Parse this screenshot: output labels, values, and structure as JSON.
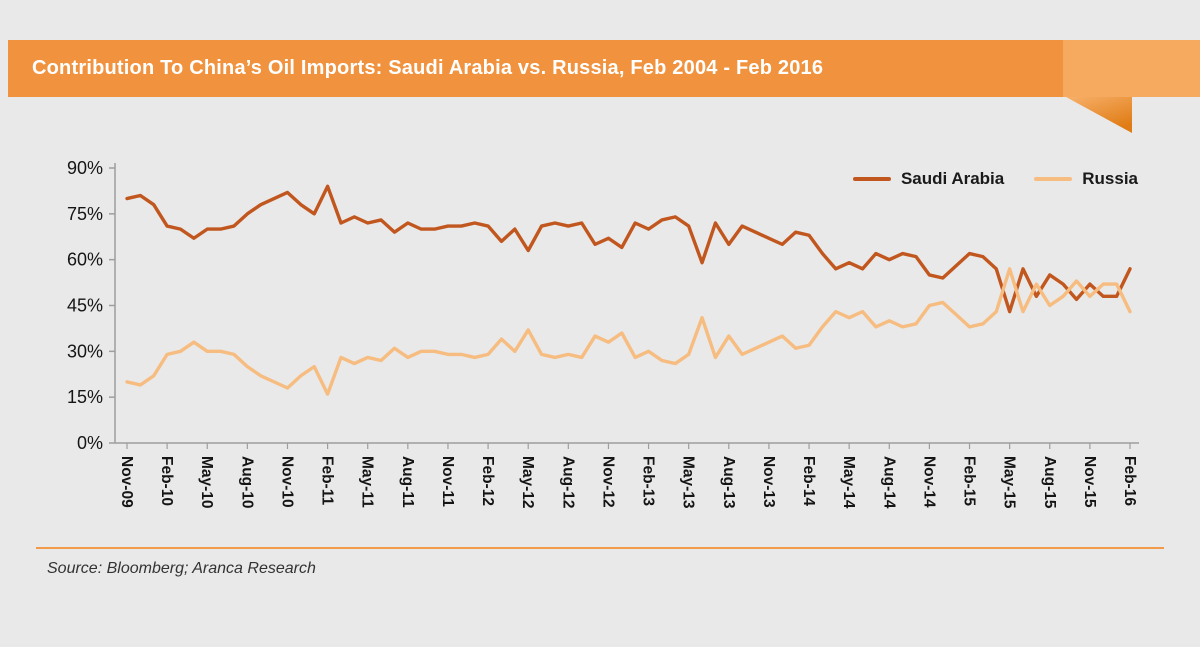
{
  "header": {
    "title": "Contribution To China’s Oil Imports: Saudi Arabia vs. Russia, Feb 2004 - Feb 2016",
    "banner_color": "#f0923e",
    "ribbon_color": "#f5aa60",
    "fold_color_light": "#f7b06a",
    "fold_color_dark": "#e07c15"
  },
  "legend": {
    "items": [
      {
        "label": "Saudi Arabia",
        "color": "#c1571e"
      },
      {
        "label": "Russia",
        "color": "#f6bc80"
      }
    ]
  },
  "footer": {
    "source": "Source: Bloomberg; Aranca Research",
    "divider_color": "#f09a4a"
  },
  "chart_data": {
    "type": "line",
    "title": "Contribution To China’s Oil Imports: Saudi Arabia vs. Russia, Feb 2004 - Feb 2016",
    "xlabel": "",
    "ylabel": "",
    "ylim": [
      0,
      90
    ],
    "yticks_percent": [
      0,
      15,
      30,
      45,
      60,
      75,
      90
    ],
    "ytick_labels": [
      "0%",
      "15%",
      "30%",
      "45%",
      "60%",
      "75%",
      "90%"
    ],
    "grid": false,
    "legend_position": "top-right",
    "axis_color": "#9e9e9e",
    "x_tick_step": 3,
    "x_tick_labels": [
      "Nov-09",
      "Feb-10",
      "May-10",
      "Aug-10",
      "Nov-10",
      "Feb-11",
      "May-11",
      "Aug-11",
      "Nov-11",
      "Feb-12",
      "May-12",
      "Aug-12",
      "Nov-12",
      "Feb-13",
      "May-13",
      "Aug-13",
      "Nov-13",
      "Feb-14",
      "May-14",
      "Aug-14",
      "Nov-14",
      "Feb-15",
      "May-15",
      "Aug-15",
      "Nov-15",
      "Feb-16"
    ],
    "x": [
      "Nov-09",
      "Dec-09",
      "Jan-10",
      "Feb-10",
      "Mar-10",
      "Apr-10",
      "May-10",
      "Jun-10",
      "Jul-10",
      "Aug-10",
      "Sep-10",
      "Oct-10",
      "Nov-10",
      "Dec-10",
      "Jan-11",
      "Feb-11",
      "Mar-11",
      "Apr-11",
      "May-11",
      "Jun-11",
      "Jul-11",
      "Aug-11",
      "Sep-11",
      "Oct-11",
      "Nov-11",
      "Dec-11",
      "Jan-12",
      "Feb-12",
      "Mar-12",
      "Apr-12",
      "May-12",
      "Jun-12",
      "Jul-12",
      "Aug-12",
      "Sep-12",
      "Oct-12",
      "Nov-12",
      "Dec-12",
      "Jan-13",
      "Feb-13",
      "Mar-13",
      "Apr-13",
      "May-13",
      "Jun-13",
      "Jul-13",
      "Aug-13",
      "Sep-13",
      "Oct-13",
      "Nov-13",
      "Dec-13",
      "Jan-14",
      "Feb-14",
      "Mar-14",
      "Apr-14",
      "May-14",
      "Jun-14",
      "Jul-14",
      "Aug-14",
      "Sep-14",
      "Oct-14",
      "Nov-14",
      "Dec-14",
      "Jan-15",
      "Feb-15",
      "Mar-15",
      "Apr-15",
      "May-15",
      "Jun-15",
      "Jul-15",
      "Aug-15",
      "Sep-15",
      "Oct-15",
      "Nov-15",
      "Dec-15",
      "Jan-16",
      "Feb-16"
    ],
    "series": [
      {
        "name": "Saudi Arabia",
        "color": "#c1571e",
        "values": [
          80,
          81,
          78,
          71,
          70,
          67,
          70,
          70,
          71,
          75,
          78,
          80,
          82,
          78,
          75,
          84,
          72,
          74,
          72,
          73,
          69,
          72,
          70,
          70,
          71,
          71,
          72,
          71,
          66,
          70,
          63,
          71,
          72,
          71,
          72,
          65,
          67,
          64,
          72,
          70,
          73,
          74,
          71,
          59,
          72,
          65,
          71,
          69,
          67,
          65,
          69,
          68,
          62,
          57,
          59,
          57,
          62,
          60,
          62,
          61,
          55,
          54,
          58,
          62,
          61,
          57,
          43,
          57,
          48,
          55,
          52,
          47,
          52,
          48,
          48,
          57
        ]
      },
      {
        "name": "Russia",
        "color": "#f6bc80",
        "values": [
          20,
          19,
          22,
          29,
          30,
          33,
          30,
          30,
          29,
          25,
          22,
          20,
          18,
          22,
          25,
          16,
          28,
          26,
          28,
          27,
          31,
          28,
          30,
          30,
          29,
          29,
          28,
          29,
          34,
          30,
          37,
          29,
          28,
          29,
          28,
          35,
          33,
          36,
          28,
          30,
          27,
          26,
          29,
          41,
          28,
          35,
          29,
          31,
          33,
          35,
          31,
          32,
          38,
          43,
          41,
          43,
          38,
          40,
          38,
          39,
          45,
          46,
          42,
          38,
          39,
          43,
          57,
          43,
          52,
          45,
          48,
          53,
          48,
          52,
          52,
          43
        ]
      }
    ]
  }
}
